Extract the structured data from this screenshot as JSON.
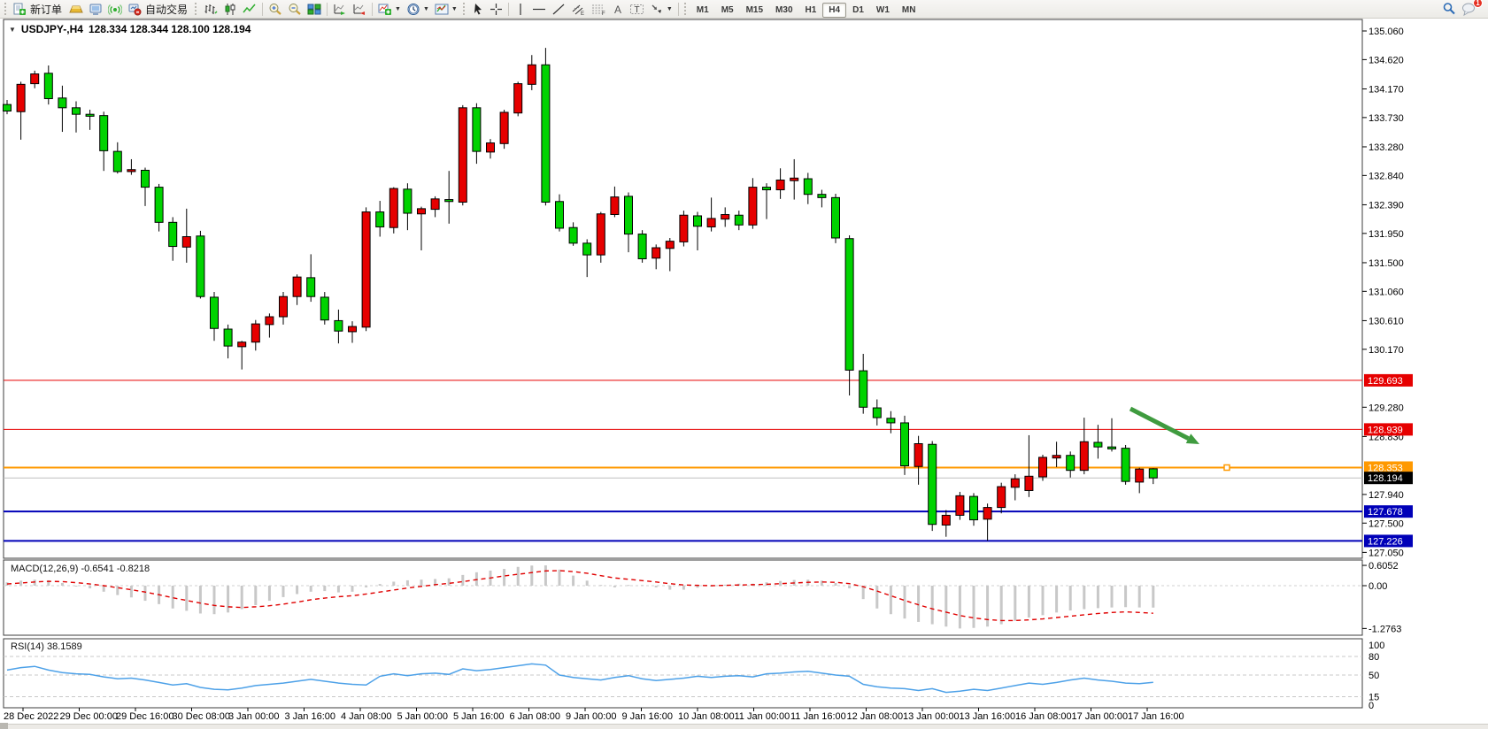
{
  "toolbar": {
    "new_order_label": "新订单",
    "autotrade_label": "自动交易",
    "periods": [
      "M1",
      "M5",
      "M15",
      "M30",
      "H1",
      "H4",
      "D1",
      "W1",
      "MN"
    ],
    "active_period": "H4",
    "chat_badge": "1"
  },
  "chart": {
    "title_symbol": "USDJPY-,H4",
    "title_ohlc": "128.334 128.344 128.100 128.194",
    "price_ticks": [
      "135.060",
      "134.620",
      "134.170",
      "133.730",
      "133.280",
      "132.840",
      "132.390",
      "131.950",
      "131.500",
      "131.060",
      "130.610",
      "130.170",
      "129.280",
      "128.830",
      "127.940",
      "127.500",
      "127.050"
    ],
    "time_labels": [
      "28 Dec 2022",
      "29 Dec 00:00",
      "29 Dec 16:00",
      "30 Dec 08:00",
      "3 Jan 00:00",
      "3 Jan 16:00",
      "4 Jan 08:00",
      "5 Jan 00:00",
      "5 Jan 16:00",
      "6 Jan 08:00",
      "9 Jan 00:00",
      "9 Jan 16:00",
      "10 Jan 08:00",
      "11 Jan 00:00",
      "11 Jan 16:00",
      "12 Jan 08:00",
      "13 Jan 00:00",
      "13 Jan 16:00",
      "16 Jan 08:00",
      "17 Jan 00:00",
      "17 Jan 16:00"
    ],
    "arrow": {
      "from": [
        1277,
        462
      ],
      "to": [
        1355,
        502
      ],
      "color": "#3f9b3f"
    }
  },
  "chart_data": {
    "type": "candlestick",
    "symbol": "USDJPY-",
    "timeframe": "H4",
    "ylim": [
      127.05,
      135.06
    ],
    "up_color": "#e60000",
    "down_color": "#00d300",
    "outline_color": "#000000",
    "levels": [
      {
        "price": 129.693,
        "color": "#e60000",
        "width": 1,
        "label_bg": "#e60000"
      },
      {
        "price": 128.939,
        "color": "#e60000",
        "width": 1,
        "label_bg": "#e60000"
      },
      {
        "price": 128.353,
        "color": "#ff9900",
        "width": 2,
        "label_bg": "#ff9900",
        "handle_x": 1386
      },
      {
        "price": 128.194,
        "color": "#bfbfbf",
        "width": 1,
        "label_bg": "#000000"
      },
      {
        "price": 127.678,
        "color": "#0000b8",
        "width": 2,
        "label_bg": "#0000b8"
      },
      {
        "price": 127.226,
        "color": "#0000b8",
        "width": 2,
        "label_bg": "#0000b8"
      }
    ],
    "candles": [
      [
        133.93,
        134.0,
        133.78,
        133.83
      ],
      [
        133.82,
        134.28,
        133.39,
        134.24
      ],
      [
        134.25,
        134.45,
        134.18,
        134.4
      ],
      [
        134.41,
        134.53,
        133.93,
        134.02
      ],
      [
        134.03,
        134.22,
        133.51,
        133.88
      ],
      [
        133.88,
        133.98,
        133.5,
        133.78
      ],
      [
        133.78,
        133.85,
        133.54,
        133.75
      ],
      [
        133.76,
        133.82,
        132.91,
        133.22
      ],
      [
        133.21,
        133.35,
        132.87,
        132.9
      ],
      [
        132.9,
        133.09,
        132.85,
        132.93
      ],
      [
        132.92,
        132.96,
        132.37,
        132.66
      ],
      [
        132.66,
        132.71,
        131.98,
        132.12
      ],
      [
        132.12,
        132.2,
        131.53,
        131.75
      ],
      [
        131.74,
        132.33,
        131.5,
        131.9
      ],
      [
        131.91,
        131.99,
        130.95,
        130.98
      ],
      [
        130.97,
        131.05,
        130.3,
        130.49
      ],
      [
        130.48,
        130.55,
        130.03,
        130.22
      ],
      [
        130.21,
        130.3,
        129.86,
        130.28
      ],
      [
        130.28,
        130.62,
        130.15,
        130.56
      ],
      [
        130.55,
        130.72,
        130.35,
        130.67
      ],
      [
        130.67,
        131.05,
        130.55,
        130.98
      ],
      [
        130.98,
        131.32,
        130.85,
        131.28
      ],
      [
        131.27,
        131.63,
        130.9,
        130.98
      ],
      [
        130.97,
        131.05,
        130.55,
        130.62
      ],
      [
        130.61,
        130.78,
        130.26,
        130.45
      ],
      [
        130.44,
        130.6,
        130.27,
        130.52
      ],
      [
        130.51,
        132.35,
        130.45,
        132.28
      ],
      [
        132.28,
        132.45,
        131.9,
        132.05
      ],
      [
        132.04,
        132.66,
        131.95,
        132.64
      ],
      [
        132.63,
        132.72,
        132.0,
        132.26
      ],
      [
        132.25,
        132.36,
        131.69,
        132.33
      ],
      [
        132.32,
        132.52,
        132.2,
        132.48
      ],
      [
        132.47,
        132.91,
        132.1,
        132.44
      ],
      [
        132.43,
        133.92,
        132.38,
        133.88
      ],
      [
        133.88,
        133.95,
        133.02,
        133.21
      ],
      [
        133.2,
        133.4,
        133.1,
        133.34
      ],
      [
        133.33,
        133.85,
        133.25,
        133.81
      ],
      [
        133.8,
        134.28,
        133.75,
        134.25
      ],
      [
        134.24,
        134.69,
        134.15,
        134.54
      ],
      [
        134.54,
        134.8,
        132.38,
        132.43
      ],
      [
        132.44,
        132.55,
        131.98,
        132.03
      ],
      [
        132.04,
        132.12,
        131.76,
        131.8
      ],
      [
        131.8,
        131.86,
        131.28,
        131.62
      ],
      [
        131.62,
        132.28,
        131.5,
        132.25
      ],
      [
        132.24,
        132.67,
        132.2,
        132.51
      ],
      [
        132.52,
        132.58,
        131.66,
        131.94
      ],
      [
        131.94,
        132.0,
        131.5,
        131.56
      ],
      [
        131.57,
        131.78,
        131.4,
        131.73
      ],
      [
        131.72,
        131.88,
        131.37,
        131.83
      ],
      [
        131.82,
        132.3,
        131.75,
        132.23
      ],
      [
        132.22,
        132.28,
        131.69,
        132.06
      ],
      [
        132.05,
        132.5,
        131.98,
        132.18
      ],
      [
        132.17,
        132.35,
        132.05,
        132.24
      ],
      [
        132.23,
        132.3,
        132.0,
        132.08
      ],
      [
        132.08,
        132.8,
        132.02,
        132.66
      ],
      [
        132.66,
        132.72,
        132.17,
        132.62
      ],
      [
        132.62,
        132.95,
        132.48,
        132.77
      ],
      [
        132.76,
        133.09,
        132.47,
        132.8
      ],
      [
        132.79,
        132.88,
        132.4,
        132.55
      ],
      [
        132.55,
        132.62,
        132.35,
        132.5
      ],
      [
        132.5,
        132.56,
        131.8,
        131.88
      ],
      [
        131.87,
        131.92,
        129.46,
        129.85
      ],
      [
        129.84,
        130.1,
        129.18,
        129.28
      ],
      [
        129.27,
        129.4,
        129.0,
        129.12
      ],
      [
        129.11,
        129.22,
        128.88,
        129.04
      ],
      [
        129.04,
        129.15,
        128.24,
        128.38
      ],
      [
        128.37,
        128.84,
        128.09,
        128.72
      ],
      [
        128.71,
        128.76,
        127.38,
        127.48
      ],
      [
        127.47,
        127.7,
        127.29,
        127.62
      ],
      [
        127.62,
        127.98,
        127.55,
        127.92
      ],
      [
        127.91,
        127.96,
        127.46,
        127.55
      ],
      [
        127.56,
        127.8,
        127.23,
        127.74
      ],
      [
        127.74,
        128.12,
        127.65,
        128.06
      ],
      [
        128.05,
        128.25,
        127.85,
        128.18
      ],
      [
        128.0,
        128.85,
        127.9,
        128.22
      ],
      [
        128.21,
        128.55,
        128.15,
        128.51
      ],
      [
        128.5,
        128.75,
        128.36,
        128.54
      ],
      [
        128.54,
        128.6,
        128.2,
        128.31
      ],
      [
        128.31,
        129.12,
        128.25,
        128.75
      ],
      [
        128.74,
        129.01,
        128.49,
        128.67
      ],
      [
        128.67,
        129.11,
        128.6,
        128.64
      ],
      [
        128.65,
        128.7,
        128.09,
        128.14
      ],
      [
        128.13,
        128.35,
        127.96,
        128.33
      ],
      [
        128.334,
        128.344,
        128.1,
        128.194
      ]
    ]
  },
  "macd": {
    "label": "MACD(12,26,9) -0.6541 -0.8218",
    "axis": [
      "0.6052",
      "0.00",
      "-1.2763"
    ],
    "range": [
      -1.2763,
      0.6052
    ],
    "hist_color": "#c8c8c8",
    "signal_color": "#e00000",
    "hist": [
      0.1,
      0.15,
      0.18,
      0.16,
      0.08,
      0.0,
      -0.08,
      -0.18,
      -0.28,
      -0.35,
      -0.45,
      -0.55,
      -0.68,
      -0.75,
      -0.83,
      -0.85,
      -0.8,
      -0.7,
      -0.58,
      -0.45,
      -0.34,
      -0.25,
      -0.18,
      -0.16,
      -0.2,
      -0.18,
      -0.05,
      0.05,
      0.12,
      0.16,
      0.18,
      0.2,
      0.22,
      0.32,
      0.4,
      0.45,
      0.5,
      0.56,
      0.6,
      0.6052,
      0.48,
      0.3,
      0.15,
      0.02,
      -0.05,
      0.02,
      0.02,
      -0.05,
      -0.12,
      -0.12,
      -0.06,
      -0.02,
      0.03,
      0.06,
      0.06,
      0.1,
      0.14,
      0.17,
      0.18,
      0.15,
      0.08,
      -0.08,
      -0.4,
      -0.68,
      -0.85,
      -0.98,
      -1.08,
      -1.15,
      -1.22,
      -1.2763,
      -1.26,
      -1.22,
      -1.15,
      -1.05,
      -0.95,
      -0.88,
      -0.8,
      -0.74,
      -0.7,
      -0.67,
      -0.65,
      -0.64,
      -0.65,
      -0.6541
    ],
    "signal": [
      0.05,
      0.08,
      0.11,
      0.13,
      0.12,
      0.09,
      0.05,
      0.0,
      -0.06,
      -0.12,
      -0.19,
      -0.27,
      -0.36,
      -0.44,
      -0.52,
      -0.59,
      -0.63,
      -0.65,
      -0.63,
      -0.6,
      -0.55,
      -0.49,
      -0.42,
      -0.37,
      -0.33,
      -0.3,
      -0.25,
      -0.19,
      -0.13,
      -0.07,
      -0.02,
      0.03,
      0.07,
      0.12,
      0.18,
      0.23,
      0.29,
      0.34,
      0.39,
      0.44,
      0.45,
      0.42,
      0.37,
      0.3,
      0.23,
      0.19,
      0.15,
      0.11,
      0.06,
      0.02,
      0.01,
      0.0,
      0.01,
      0.02,
      0.03,
      0.04,
      0.06,
      0.08,
      0.1,
      0.11,
      0.1,
      0.06,
      -0.03,
      -0.16,
      -0.3,
      -0.44,
      -0.57,
      -0.69,
      -0.79,
      -0.89,
      -0.96,
      -1.01,
      -1.04,
      -1.04,
      -1.02,
      -0.99,
      -0.95,
      -0.91,
      -0.87,
      -0.83,
      -0.8,
      -0.78,
      -0.8,
      -0.8218
    ]
  },
  "rsi": {
    "label": "RSI(14) 38.1589",
    "axis": [
      "100",
      "80",
      "50",
      "15",
      "0"
    ],
    "levels": [
      80,
      50,
      15
    ],
    "line_color": "#4da1e8",
    "values": [
      58,
      62,
      64,
      58,
      54,
      52,
      51,
      47,
      44,
      45,
      42,
      38,
      34,
      36,
      30,
      27,
      26,
      29,
      33,
      35,
      37,
      40,
      43,
      40,
      37,
      35,
      34,
      48,
      52,
      49,
      52,
      53,
      51,
      60,
      57,
      59,
      62,
      65,
      68,
      66,
      50,
      46,
      44,
      42,
      46,
      49,
      44,
      41,
      43,
      45,
      48,
      46,
      48,
      49,
      47,
      52,
      53,
      55,
      56,
      53,
      50,
      48,
      35,
      31,
      29,
      28,
      25,
      28,
      22,
      24,
      27,
      25,
      29,
      33,
      37,
      35,
      38,
      42,
      45,
      42,
      40,
      37,
      36,
      38.16
    ]
  }
}
